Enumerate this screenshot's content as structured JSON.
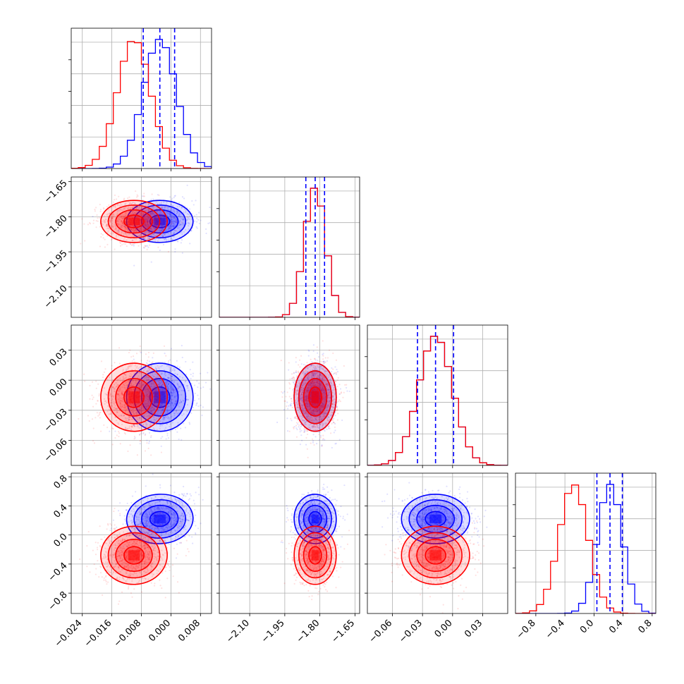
{
  "chart_data": {
    "type": "corner",
    "parameters": [
      {
        "range": [
          -0.027,
          0.011
        ],
        "ticks": [
          -0.024,
          -0.016,
          -0.008,
          0.0,
          0.008
        ],
        "labels": [
          "−0.024",
          "−0.016",
          "−0.008",
          "0.000",
          "0.008"
        ]
      },
      {
        "range": [
          -2.23,
          -1.63
        ],
        "ticks": [
          -2.1,
          -1.95,
          -1.8,
          -1.65
        ],
        "labels": [
          "−2.10",
          "−1.95",
          "−1.80",
          "−1.65"
        ]
      },
      {
        "range": [
          -0.085,
          0.055
        ],
        "ticks": [
          -0.06,
          -0.03,
          0.0,
          0.03
        ],
        "labels": [
          "−0.06",
          "−0.03",
          "0.00",
          "0.03"
        ]
      },
      {
        "range": [
          -1.08,
          0.85
        ],
        "ticks": [
          -0.8,
          -0.4,
          0.0,
          0.4,
          0.8
        ],
        "labels": [
          "−0.8",
          "−0.4",
          "0.0",
          "0.4",
          "0.8"
        ]
      }
    ],
    "series": [
      {
        "color": "#0000ff",
        "mean": [
          -0.003,
          -1.82,
          -0.017,
          0.22
        ],
        "std": [
          0.0045,
          0.045,
          0.017,
          0.17
        ],
        "corr": {
          "0-1": 0.0,
          "0-2": 0.1,
          "0-3": 0.2,
          "1-2": 0.0,
          "1-3": 0.1,
          "2-3": 0.0
        }
      },
      {
        "color": "#ff0000",
        "mean": [
          -0.01,
          -1.82,
          -0.017,
          -0.28
        ],
        "std": [
          0.0045,
          0.045,
          0.017,
          0.2
        ],
        "corr": {
          "0-1": 0.0,
          "0-2": 0.1,
          "0-3": 0.1,
          "1-2": 0.0,
          "1-3": 0.0,
          "2-3": 0.0
        }
      }
    ],
    "quantiles": [
      [
        -0.0075,
        -0.003,
        0.001
      ],
      [
        -1.86,
        -1.82,
        -1.78
      ],
      [
        -0.035,
        -0.017,
        0.001
      ],
      [
        0.04,
        0.22,
        0.39
      ]
    ],
    "quantile_color": "#0000ff",
    "grid": true
  }
}
